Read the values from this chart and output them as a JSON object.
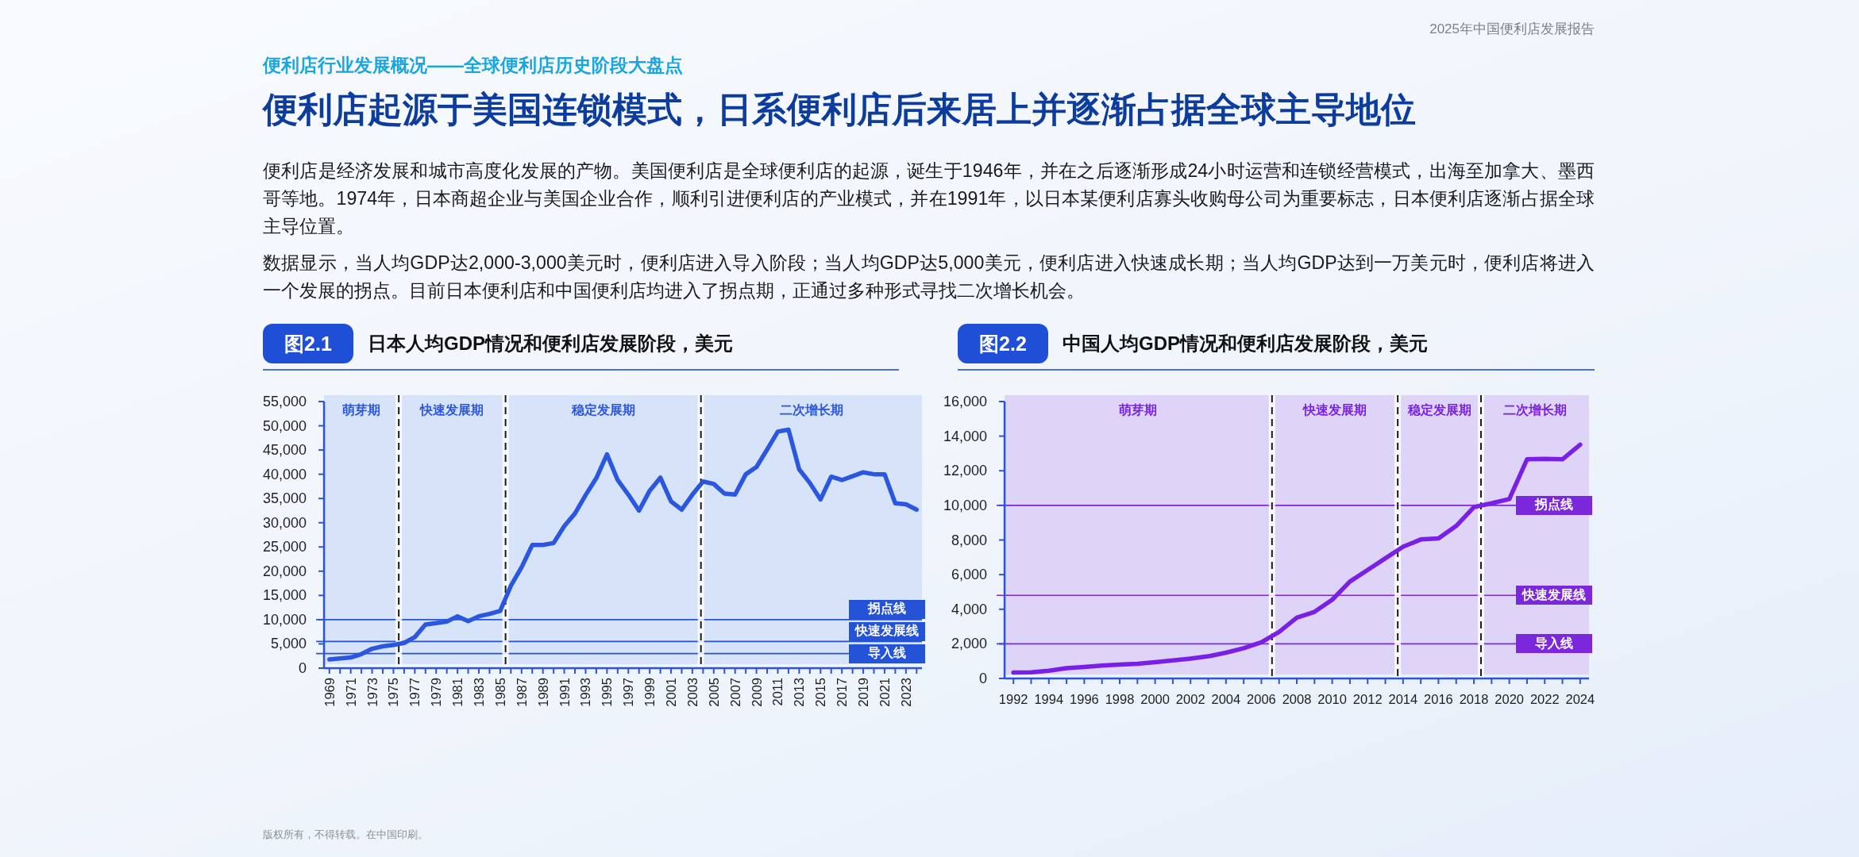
{
  "chart_data": [
    {
      "type": "other",
      "title": "便利店起源于美国连锁模式，日系便利店后来居上并逐渐占据全球主导地位",
      "subtitle": "便利店行业发展概况——全球便利店历史阶段大盘点",
      "annotations": [
        "2025年中国便利店发展报告",
        "便利店是经济发展和城市高度化发展的产物。美国便利店是全球便利店的起源，诞生于1946年，并在之后逐渐形成24小时运营和连锁经营模式，出海至加拿大、墨西哥等地。1974年，日本商超企业与美国企业合作，顺利引进便利店的产业模式，并在1991年，以日本某便利店寡头收购母公司为重要标志，日本便利店逐渐占据全球主导位置。",
        "数据显示，当人均GDP达2,000-3,000美元时，便利店进入导入阶段；当人均GDP达5,000美元，便利店进入快速成长期；当人均GDP达到一万美元时，便利店将进入一个发展的拐点。目前日本便利店和中国便利店均进入了拐点期，正通过多种形式寻找二次增长机会。",
        "版权所有，不得转载。在中国印刷。"
      ]
    },
    {
      "type": "line",
      "title": "图2.1",
      "subtitle": "日本人均GDP情况和便利店发展阶段，美元",
      "x": [
        1969,
        1970,
        1971,
        1972,
        1973,
        1974,
        1975,
        1976,
        1977,
        1978,
        1979,
        1980,
        1981,
        1982,
        1983,
        1984,
        1985,
        1986,
        1987,
        1988,
        1989,
        1990,
        1991,
        1992,
        1993,
        1994,
        1995,
        1996,
        1997,
        1998,
        1999,
        2000,
        2001,
        2002,
        2003,
        2004,
        2005,
        2006,
        2007,
        2008,
        2009,
        2010,
        2011,
        2012,
        2013,
        2014,
        2015,
        2016,
        2017,
        2018,
        2019,
        2020,
        2021,
        2022,
        2023,
        2024
      ],
      "series": [
        {
          "color": "#2b57e0",
          "values": [
            1800,
            2000,
            2200,
            2900,
            4000,
            4500,
            4800,
            5200,
            6400,
            9000,
            9300,
            9600,
            10700,
            9700,
            10700,
            11200,
            11800,
            17000,
            20800,
            25400,
            25400,
            25800,
            29300,
            31900,
            35700,
            39200,
            44100,
            38800,
            35800,
            32500,
            36600,
            39300,
            34400,
            32700,
            35800,
            38500,
            38000,
            36000,
            35800,
            40000,
            41500,
            45100,
            48800,
            49200,
            41000,
            38200,
            34800,
            39500,
            38800,
            39600,
            40400,
            40000,
            40000,
            34000,
            33800,
            32700
          ]
        }
      ],
      "xlim": [
        1968.5,
        2024.5
      ],
      "xticks": [
        1969,
        {
          "value": 1970,
          "label": null
        },
        1971,
        {
          "value": 1972,
          "label": null
        },
        1973,
        {
          "value": 1974,
          "label": null
        },
        1975,
        {
          "value": 1976,
          "label": null
        },
        1977,
        {
          "value": 1978,
          "label": null
        },
        1979,
        {
          "value": 1980,
          "label": null
        },
        1981,
        {
          "value": 1982,
          "label": null
        },
        1983,
        {
          "value": 1984,
          "label": null
        },
        1985,
        {
          "value": 1986,
          "label": null
        },
        1987,
        {
          "value": 1988,
          "label": null
        },
        1989,
        {
          "value": 1990,
          "label": null
        },
        1991,
        {
          "value": 1992,
          "label": null
        },
        1993,
        {
          "value": 1994,
          "label": null
        },
        1995,
        {
          "value": 1996,
          "label": null
        },
        1997,
        {
          "value": 1998,
          "label": null
        },
        1999,
        {
          "value": 2000,
          "label": null
        },
        2001,
        {
          "value": 2002,
          "label": null
        },
        2003,
        {
          "value": 2004,
          "label": null
        },
        2005,
        {
          "value": 2006,
          "label": null
        },
        2007,
        {
          "value": 2008,
          "label": null
        },
        2009,
        {
          "value": 2010,
          "label": null
        },
        2011,
        {
          "value": 2012,
          "label": null
        },
        2013,
        {
          "value": 2014,
          "label": null
        },
        2015,
        {
          "value": 2016,
          "label": null
        },
        2017,
        {
          "value": 2018,
          "label": null
        },
        2019,
        {
          "value": 2020,
          "label": null
        },
        2021,
        {
          "value": 2022,
          "label": null
        },
        2023,
        {
          "value": 2024,
          "label": null
        }
      ],
      "ylim": [
        0,
        55000
      ],
      "yticks": [
        0,
        {
          "value": 5000,
          "label": "5,000"
        },
        {
          "value": 10000,
          "label": "10,000"
        },
        {
          "value": 15000,
          "label": "15,000"
        },
        {
          "value": 20000,
          "label": "20,000"
        },
        {
          "value": 25000,
          "label": "25,000"
        },
        {
          "value": 30000,
          "label": "30,000"
        },
        {
          "value": 35000,
          "label": "35,000"
        },
        {
          "value": 40000,
          "label": "40,000"
        },
        {
          "value": 45000,
          "label": "45,000"
        },
        {
          "value": 50000,
          "label": "50,000"
        },
        {
          "value": 55000,
          "label": "55,000"
        }
      ],
      "bands": [
        {
          "axis": "x",
          "from": 1968.5,
          "to": 1975.5,
          "label": "萌芽期",
          "color": "#d6e3f8"
        },
        {
          "axis": "x",
          "from": 1975.5,
          "to": 1985.5,
          "label": "快速发展期",
          "color": "#d6e3f8"
        },
        {
          "axis": "x",
          "from": 1985.5,
          "to": 2003.8,
          "label": "稳定发展期",
          "color": "#d6e3f8"
        },
        {
          "axis": "x",
          "from": 2003.8,
          "to": 2024.5,
          "label": "二次增长期",
          "color": "#d6e3f8"
        }
      ],
      "ref_lines": [
        {
          "axis": "y",
          "value": 10000,
          "label": "拐点线",
          "color": "#2453d8"
        },
        {
          "axis": "y",
          "value": 5500,
          "label": "快速发展线",
          "color": "#2453d8"
        },
        {
          "axis": "y",
          "value": 3000,
          "label": "导入线",
          "color": "#2453d8"
        },
        {
          "axis": "x",
          "value": 1975.5,
          "label": null,
          "color": "#1a1a1a",
          "line_style": "dashed"
        },
        {
          "axis": "x",
          "value": 1985.5,
          "label": null,
          "color": "#1a1a1a",
          "line_style": "dashed"
        },
        {
          "axis": "x",
          "value": 2003.8,
          "label": null,
          "color": "#1a1a1a",
          "line_style": "dashed"
        }
      ]
    },
    {
      "type": "line",
      "title": "图2.2",
      "subtitle": "中国人均GDP情况和便利店发展阶段，美元",
      "x": [
        1992,
        1993,
        1994,
        1995,
        1996,
        1997,
        1998,
        1999,
        2000,
        2001,
        2002,
        2003,
        2004,
        2005,
        2006,
        2007,
        2008,
        2009,
        2010,
        2011,
        2012,
        2013,
        2014,
        2015,
        2016,
        2017,
        2018,
        2019,
        2020,
        2021,
        2022,
        2023,
        2024
      ],
      "series": [
        {
          "color": "#7a1fe6",
          "values": [
            340,
            360,
            450,
            600,
            670,
            750,
            800,
            850,
            940,
            1040,
            1150,
            1280,
            1490,
            1750,
            2090,
            2690,
            3510,
            3850,
            4550,
            5600,
            6270,
            6940,
            7610,
            8030,
            8090,
            8810,
            9900,
            10120,
            10370,
            12660,
            12690,
            12660,
            13510
          ]
        }
      ],
      "xlim": [
        1991.5,
        2024.5
      ],
      "xticks": [
        1992,
        {
          "value": 1993,
          "label": null
        },
        1994,
        {
          "value": 1995,
          "label": null
        },
        1996,
        {
          "value": 1997,
          "label": null
        },
        1998,
        {
          "value": 1999,
          "label": null
        },
        2000,
        {
          "value": 2001,
          "label": null
        },
        2002,
        {
          "value": 2003,
          "label": null
        },
        2004,
        {
          "value": 2005,
          "label": null
        },
        2006,
        {
          "value": 2007,
          "label": null
        },
        2008,
        {
          "value": 2009,
          "label": null
        },
        2010,
        {
          "value": 2011,
          "label": null
        },
        2012,
        {
          "value": 2013,
          "label": null
        },
        2014,
        {
          "value": 2015,
          "label": null
        },
        2016,
        {
          "value": 2017,
          "label": null
        },
        2018,
        {
          "value": 2019,
          "label": null
        },
        2020,
        {
          "value": 2021,
          "label": null
        },
        2022,
        {
          "value": 2023,
          "label": null
        },
        2024
      ],
      "ylim": [
        0,
        16000
      ],
      "yticks": [
        0,
        {
          "value": 2000,
          "label": "2,000"
        },
        {
          "value": 4000,
          "label": "4,000"
        },
        {
          "value": 6000,
          "label": "6,000"
        },
        {
          "value": 8000,
          "label": "8,000"
        },
        {
          "value": 10000,
          "label": "10,000"
        },
        {
          "value": 12000,
          "label": "12,000"
        },
        {
          "value": 14000,
          "label": "14,000"
        },
        {
          "value": 16000,
          "label": "16,000"
        }
      ],
      "bands": [
        {
          "axis": "x",
          "from": 1991.5,
          "to": 2006.6,
          "label": "萌芽期",
          "color": "#ddd4f8"
        },
        {
          "axis": "x",
          "from": 2006.6,
          "to": 2013.7,
          "label": "快速发展期",
          "color": "#ddd4f8"
        },
        {
          "axis": "x",
          "from": 2013.7,
          "to": 2018.4,
          "label": "稳定发展期",
          "color": "#ddd4f8"
        },
        {
          "axis": "x",
          "from": 2018.4,
          "to": 2024.5,
          "label": "二次增长期",
          "color": "#ddd4f8"
        }
      ],
      "ref_lines": [
        {
          "axis": "y",
          "value": 10000,
          "label": "拐点线",
          "color": "#7b28dd"
        },
        {
          "axis": "y",
          "value": 4800,
          "label": "快速发展线",
          "color": "#7b28dd"
        },
        {
          "axis": "y",
          "value": 2000,
          "label": "导入线",
          "color": "#7b28dd"
        },
        {
          "axis": "x",
          "value": 2006.6,
          "label": null,
          "color": "#1a1a1a",
          "line_style": "dashed"
        },
        {
          "axis": "x",
          "value": 2013.7,
          "label": null,
          "color": "#1a1a1a",
          "line_style": "dashed"
        },
        {
          "axis": "x",
          "value": 2018.4,
          "label": null,
          "color": "#1a1a1a",
          "line_style": "dashed"
        }
      ]
    }
  ]
}
